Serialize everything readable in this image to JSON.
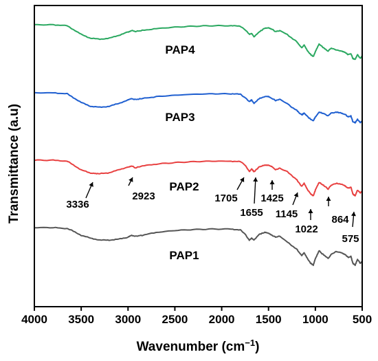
{
  "chart_data": {
    "type": "line",
    "title": "",
    "xlabel": "Wavenumber (cm",
    "xlabel_sup": "−1",
    "xlabel_close": ")",
    "ylabel": "Transmittance (a.u)",
    "xlim": [
      4000,
      500
    ],
    "x_reversed": true,
    "xticks": [
      "4000",
      "3500",
      "3000",
      "2500",
      "2000",
      "1500",
      "1000",
      "500"
    ],
    "y_ticks_shown": false,
    "grid": false,
    "legend": "none (labels placed on curves)",
    "colors": {
      "PAP1": "#555555",
      "PAP2": "#e84040",
      "PAP3": "#1f5fd0",
      "PAP4": "#2aa860"
    },
    "series": [
      {
        "name": "PAP4",
        "offset": 3,
        "x": [
          4000,
          3800,
          3650,
          3600,
          3500,
          3400,
          3300,
          3200,
          3100,
          3000,
          2960,
          2923,
          2850,
          2700,
          2500,
          2300,
          2100,
          1900,
          1800,
          1750,
          1705,
          1680,
          1655,
          1600,
          1540,
          1500,
          1460,
          1425,
          1380,
          1300,
          1250,
          1200,
          1180,
          1145,
          1120,
          1080,
          1050,
          1022,
          1000,
          960,
          930,
          900,
          864,
          830,
          780,
          720,
          680,
          650,
          620,
          600,
          575,
          550,
          520,
          500
        ],
        "y": [
          0.0,
          0.0,
          -0.02,
          -0.08,
          -0.2,
          -0.28,
          -0.3,
          -0.28,
          -0.22,
          -0.15,
          -0.12,
          -0.14,
          -0.12,
          -0.08,
          -0.05,
          -0.03,
          -0.02,
          -0.02,
          -0.03,
          -0.1,
          -0.2,
          -0.18,
          -0.25,
          -0.15,
          -0.07,
          -0.06,
          -0.1,
          -0.14,
          -0.12,
          -0.2,
          -0.28,
          -0.35,
          -0.4,
          -0.48,
          -0.42,
          -0.55,
          -0.62,
          -0.66,
          -0.56,
          -0.4,
          -0.45,
          -0.5,
          -0.55,
          -0.48,
          -0.52,
          -0.55,
          -0.58,
          -0.62,
          -0.6,
          -0.7,
          -0.72,
          -0.62,
          -0.7,
          -0.65
        ]
      },
      {
        "name": "PAP3",
        "offset": 2,
        "x": [
          4000,
          3800,
          3650,
          3600,
          3500,
          3400,
          3300,
          3200,
          3100,
          3000,
          2960,
          2923,
          2850,
          2700,
          2500,
          2300,
          2100,
          1900,
          1800,
          1750,
          1705,
          1680,
          1655,
          1600,
          1540,
          1500,
          1460,
          1425,
          1380,
          1300,
          1250,
          1200,
          1180,
          1145,
          1120,
          1080,
          1050,
          1022,
          1000,
          960,
          930,
          900,
          864,
          830,
          780,
          720,
          680,
          650,
          620,
          600,
          575,
          550,
          520,
          500
        ],
        "y": [
          0.0,
          0.0,
          -0.02,
          -0.08,
          -0.2,
          -0.28,
          -0.3,
          -0.28,
          -0.22,
          -0.15,
          -0.12,
          -0.14,
          -0.12,
          -0.08,
          -0.05,
          -0.03,
          -0.02,
          -0.02,
          -0.03,
          -0.1,
          -0.18,
          -0.15,
          -0.22,
          -0.12,
          -0.08,
          -0.08,
          -0.12,
          -0.16,
          -0.14,
          -0.22,
          -0.3,
          -0.36,
          -0.4,
          -0.46,
          -0.42,
          -0.5,
          -0.55,
          -0.58,
          -0.5,
          -0.4,
          -0.42,
          -0.44,
          -0.48,
          -0.42,
          -0.4,
          -0.42,
          -0.45,
          -0.5,
          -0.48,
          -0.6,
          -0.62,
          -0.55,
          -0.62,
          -0.58
        ]
      },
      {
        "name": "PAP2",
        "offset": 1,
        "x": [
          4000,
          3800,
          3650,
          3600,
          3500,
          3400,
          3336,
          3300,
          3200,
          3100,
          3000,
          2960,
          2923,
          2850,
          2700,
          2500,
          2300,
          2100,
          1900,
          1800,
          1750,
          1705,
          1680,
          1655,
          1600,
          1540,
          1500,
          1460,
          1425,
          1380,
          1300,
          1250,
          1200,
          1180,
          1145,
          1120,
          1080,
          1050,
          1022,
          1000,
          960,
          930,
          900,
          864,
          830,
          780,
          720,
          680,
          650,
          620,
          600,
          575,
          550,
          520,
          500
        ],
        "y": [
          0.0,
          0.0,
          -0.02,
          -0.08,
          -0.2,
          -0.27,
          -0.28,
          -0.28,
          -0.26,
          -0.2,
          -0.14,
          -0.12,
          -0.16,
          -0.12,
          -0.08,
          -0.05,
          -0.03,
          -0.02,
          -0.02,
          -0.03,
          -0.1,
          -0.24,
          -0.18,
          -0.24,
          -0.14,
          -0.1,
          -0.1,
          -0.14,
          -0.2,
          -0.16,
          -0.24,
          -0.32,
          -0.4,
          -0.46,
          -0.54,
          -0.48,
          -0.62,
          -0.7,
          -0.74,
          -0.62,
          -0.46,
          -0.5,
          -0.54,
          -0.6,
          -0.52,
          -0.48,
          -0.5,
          -0.54,
          -0.58,
          -0.56,
          -0.7,
          -0.74,
          -0.62,
          -0.68,
          -0.64
        ]
      },
      {
        "name": "PAP1",
        "offset": 0,
        "x": [
          4000,
          3800,
          3650,
          3600,
          3500,
          3400,
          3300,
          3200,
          3100,
          3000,
          2960,
          2923,
          2850,
          2700,
          2500,
          2300,
          2100,
          1900,
          1800,
          1750,
          1705,
          1680,
          1655,
          1600,
          1540,
          1500,
          1460,
          1425,
          1380,
          1300,
          1250,
          1200,
          1180,
          1145,
          1120,
          1080,
          1050,
          1022,
          1000,
          960,
          930,
          900,
          864,
          830,
          780,
          720,
          680,
          650,
          620,
          600,
          575,
          550,
          520,
          500
        ],
        "y": [
          0.0,
          0.0,
          -0.02,
          -0.06,
          -0.16,
          -0.22,
          -0.26,
          -0.26,
          -0.24,
          -0.2,
          -0.16,
          -0.18,
          -0.16,
          -0.1,
          -0.06,
          -0.04,
          -0.03,
          -0.03,
          -0.05,
          -0.14,
          -0.26,
          -0.22,
          -0.26,
          -0.14,
          -0.1,
          -0.12,
          -0.16,
          -0.2,
          -0.18,
          -0.3,
          -0.38,
          -0.44,
          -0.5,
          -0.58,
          -0.52,
          -0.66,
          -0.74,
          -0.78,
          -0.64,
          -0.48,
          -0.54,
          -0.58,
          -0.64,
          -0.56,
          -0.5,
          -0.52,
          -0.56,
          -0.62,
          -0.6,
          -0.74,
          -0.78,
          -0.66,
          -0.74,
          -0.7
        ]
      }
    ],
    "annotations": [
      "3336",
      "2923",
      "1705",
      "1655",
      "1425",
      "1145",
      "1022",
      "864",
      "575"
    ]
  }
}
